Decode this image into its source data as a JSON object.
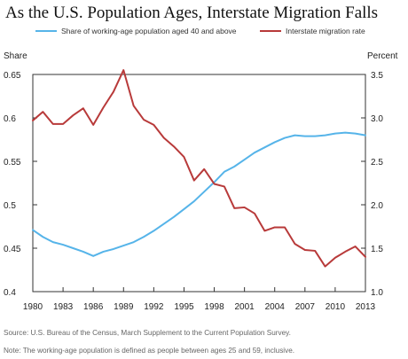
{
  "title": "As the U.S. Population Ages, Interstate Migration Falls",
  "source_note": "Source: U.S. Bureau of the Census, March Supplement to the Current Population Survey.",
  "definition_note": "Note: The working-age population is defined as people between ages 25 and 59, inclusive.",
  "colors": {
    "share": "#56B4E9",
    "migration": "#B83A3A",
    "axis": "#333333"
  },
  "chart_data": {
    "type": "line",
    "xlabel": "",
    "x_ticks": [
      "1980",
      "1983",
      "1986",
      "1989",
      "1992",
      "1995",
      "1998",
      "2001",
      "2004",
      "2007",
      "2010",
      "2013"
    ],
    "xlim": [
      1980,
      2013
    ],
    "left_axis": {
      "label": "Share",
      "ylim": [
        0.4,
        0.65
      ],
      "ticks": [
        "0.4",
        "0.45",
        "0.5",
        "0.55",
        "0.6",
        "0.65"
      ]
    },
    "right_axis": {
      "label": "Percent",
      "ylim": [
        1.0,
        3.5
      ],
      "ticks": [
        "1.0",
        "1.5",
        "2.0",
        "2.5",
        "3.0",
        "3.5"
      ]
    },
    "legend_position": "top",
    "series": [
      {
        "name": "Share of working-age population aged 40 and above",
        "axis": "left",
        "x": [
          1980,
          1981,
          1982,
          1983,
          1984,
          1985,
          1986,
          1987,
          1988,
          1989,
          1990,
          1991,
          1992,
          1993,
          1994,
          1995,
          1996,
          1997,
          1998,
          1999,
          2000,
          2001,
          2002,
          2003,
          2004,
          2005,
          2006,
          2007,
          2008,
          2009,
          2010,
          2011,
          2012,
          2013
        ],
        "values": [
          0.471,
          0.463,
          0.457,
          0.454,
          0.45,
          0.446,
          0.441,
          0.446,
          0.449,
          0.453,
          0.457,
          0.463,
          0.47,
          0.478,
          0.486,
          0.495,
          0.504,
          0.515,
          0.526,
          0.538,
          0.544,
          0.552,
          0.56,
          0.566,
          0.572,
          0.577,
          0.58,
          0.579,
          0.579,
          0.58,
          0.582,
          0.583,
          0.582,
          0.58
        ]
      },
      {
        "name": "Interstate migration rate",
        "axis": "right",
        "x": [
          1980,
          1981,
          1982,
          1983,
          1984,
          1985,
          1986,
          1987,
          1988,
          1989,
          1990,
          1991,
          1992,
          1993,
          1994,
          1995,
          1996,
          1997,
          1998,
          1999,
          2000,
          2001,
          2002,
          2003,
          2004,
          2005,
          2006,
          2007,
          2008,
          2009,
          2010,
          2011,
          2012,
          2013
        ],
        "values": [
          2.97,
          3.07,
          2.93,
          2.93,
          3.03,
          3.11,
          2.92,
          3.12,
          3.3,
          3.55,
          3.14,
          2.98,
          2.92,
          2.77,
          2.67,
          2.55,
          2.28,
          2.41,
          2.24,
          2.21,
          1.96,
          1.97,
          1.9,
          1.7,
          1.74,
          1.74,
          1.55,
          1.48,
          1.47,
          1.29,
          1.39,
          1.46,
          1.52,
          1.4
        ]
      }
    ]
  }
}
